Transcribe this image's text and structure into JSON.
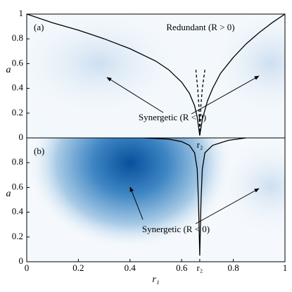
{
  "chart_data": [
    {
      "type": "line",
      "panel_label": "(a)",
      "ylabel": "a",
      "annotations": [
        "Redundant (R > 0)",
        "Synergetic (R < 0)",
        "r₂"
      ],
      "xlim": [
        0,
        1
      ],
      "ylim": [
        0,
        1
      ],
      "yticks": [
        0,
        0.2,
        0.4,
        0.6,
        0.8,
        1
      ],
      "series": [
        {
          "color": "#000",
          "style": "solid",
          "x": [
            0,
            0.1,
            0.2,
            0.3,
            0.4,
            0.5,
            0.55,
            0.6,
            0.63,
            0.65,
            0.66,
            0.67,
            0.68,
            0.7,
            0.72,
            0.75,
            0.8,
            0.85,
            0.9,
            0.95,
            1
          ],
          "values": [
            1,
            0.93,
            0.87,
            0.8,
            0.72,
            0.62,
            0.55,
            0.45,
            0.36,
            0.26,
            0.17,
            0.02,
            0.15,
            0.3,
            0.4,
            0.52,
            0.65,
            0.76,
            0.85,
            0.93,
            1
          ]
        },
        {
          "color": "#000",
          "style": "dashed",
          "x": [
            0.655,
            0.662,
            0.667,
            0.67
          ],
          "values": [
            0.55,
            0.4,
            0.25,
            0.02
          ]
        },
        {
          "color": "#000",
          "style": "dashed",
          "x": [
            0.69,
            0.68,
            0.674,
            0.67
          ],
          "values": [
            0.55,
            0.4,
            0.25,
            0.02
          ]
        }
      ]
    },
    {
      "type": "line",
      "panel_label": "(b)",
      "ylabel": "a",
      "xlabel": "r₁",
      "annotations": [
        "Synergetic (R < 0)"
      ],
      "xlim": [
        0,
        1
      ],
      "ylim": [
        0,
        1
      ],
      "yticks": [
        0,
        0.2,
        0.4,
        0.6,
        0.8
      ],
      "xticks": [
        0,
        0.2,
        0.4,
        0.6,
        {
          "value": 0.67,
          "label": "r₂"
        },
        0.8,
        1
      ],
      "series": [
        {
          "color": "#000",
          "style": "solid",
          "x": [
            0.45,
            0.55,
            0.6,
            0.63,
            0.65,
            0.66,
            0.665,
            0.67,
            0.675,
            0.68,
            0.69,
            0.72,
            0.78,
            0.85
          ],
          "values": [
            1,
            0.99,
            0.97,
            0.94,
            0.88,
            0.75,
            0.5,
            0.05,
            0.5,
            0.75,
            0.88,
            0.94,
            0.98,
            1
          ]
        }
      ]
    }
  ]
}
